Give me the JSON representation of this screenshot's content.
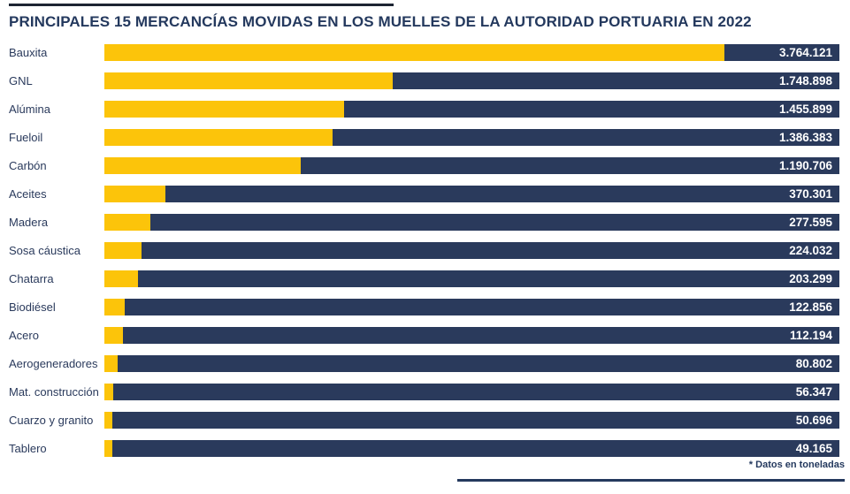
{
  "title": "PRINCIPALES 15 MERCANCÍAS MOVIDAS EN LOS MUELLES DE LA AUTORIDAD PORTUARIA EN 2022",
  "footnote": "* Datos en toneladas",
  "colors": {
    "bar_navy": "#2A3A5C",
    "bar_yellow": "#FCC40A",
    "title_navy": "#24395E",
    "top_rule": "#1D2433",
    "value_text": "#FFFFFF"
  },
  "chart_data": {
    "type": "bar",
    "orientation": "horizontal",
    "title": "PRINCIPALES 15 MERCANCÍAS MOVIDAS EN LOS MUELLES DE LA AUTORIDAD PORTUARIA EN 2022",
    "unit": "toneladas",
    "xlim": [
      0,
      4460000
    ],
    "grid": false,
    "legend": false,
    "categories": [
      "Bauxita",
      "GNL",
      "Alúmina",
      "Fueloil",
      "Carbón",
      "Aceites",
      "Madera",
      "Sosa cáustica",
      "Chatarra",
      "Biodiésel",
      "Acero",
      "Aerogeneradores",
      "Mat. construcción",
      "Cuarzo y granito",
      "Tablero"
    ],
    "values": [
      3764121,
      1748898,
      1455899,
      1386383,
      1190706,
      370301,
      277595,
      224032,
      203299,
      122856,
      112194,
      80802,
      56347,
      50696,
      49165
    ],
    "value_labels": [
      "3.764.121",
      "1.748.898",
      "1.455.899",
      "1.386.383",
      "1.190.706",
      "370.301",
      "277.595",
      "224.032",
      "203.299",
      "122.856",
      "112.194",
      "80.802",
      "56.347",
      "50.696",
      "49.165"
    ]
  }
}
